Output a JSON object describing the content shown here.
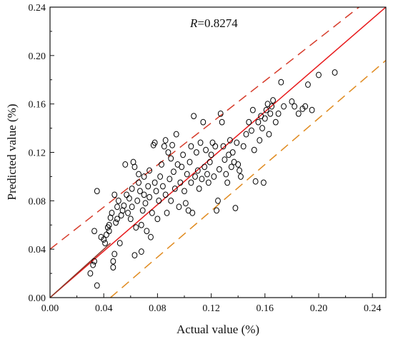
{
  "chart_data": {
    "type": "scatter",
    "title": "",
    "xlabel": "Actual value (%)",
    "ylabel": "Predicted value (%)",
    "xlim": [
      0.0,
      0.25
    ],
    "ylim": [
      0.0,
      0.24
    ],
    "x_ticks": [
      "0.00",
      "0.04",
      "0.08",
      "0.12",
      "0.16",
      "0.20",
      "0.24"
    ],
    "y_ticks": [
      "0.00",
      "0.04",
      "0.08",
      "0.12",
      "0.16",
      "0.20",
      "0.24"
    ],
    "grid": false,
    "annotation": {
      "var": "R",
      "text": "=0.8274"
    },
    "colors": {
      "fit_line": "#e8191b",
      "upper_band": "#d63b2a",
      "lower_band": "#e08a1e",
      "identity_line": "#8a3a2a",
      "markers": "#000000"
    },
    "lines": [
      {
        "role": "fit",
        "style": "solid",
        "x": [
          0.0,
          0.25
        ],
        "y": [
          0.0,
          0.24
        ]
      },
      {
        "role": "identity",
        "style": "solid",
        "x": [
          0.0,
          0.045
        ],
        "y": [
          0.0,
          0.045
        ]
      },
      {
        "role": "upper-bound",
        "style": "dashed",
        "x": [
          0.0,
          0.23
        ],
        "y": [
          0.04,
          0.24
        ]
      },
      {
        "role": "lower-bound",
        "style": "dashed",
        "x": [
          0.045,
          0.25
        ],
        "y": [
          0.0,
          0.196
        ]
      }
    ],
    "points": [
      [
        0.03,
        0.02
      ],
      [
        0.032,
        0.027
      ],
      [
        0.033,
        0.03
      ],
      [
        0.035,
        0.01
      ],
      [
        0.033,
        0.055
      ],
      [
        0.035,
        0.088
      ],
      [
        0.038,
        0.05
      ],
      [
        0.04,
        0.048
      ],
      [
        0.041,
        0.045
      ],
      [
        0.042,
        0.052
      ],
      [
        0.043,
        0.058
      ],
      [
        0.044,
        0.06
      ],
      [
        0.045,
        0.066
      ],
      [
        0.046,
        0.07
      ],
      [
        0.044,
        0.055
      ],
      [
        0.047,
        0.025
      ],
      [
        0.047,
        0.03
      ],
      [
        0.048,
        0.036
      ],
      [
        0.049,
        0.062
      ],
      [
        0.05,
        0.065
      ],
      [
        0.05,
        0.075
      ],
      [
        0.051,
        0.08
      ],
      [
        0.048,
        0.085
      ],
      [
        0.052,
        0.045
      ],
      [
        0.053,
        0.068
      ],
      [
        0.054,
        0.072
      ],
      [
        0.055,
        0.076
      ],
      [
        0.056,
        0.11
      ],
      [
        0.057,
        0.085
      ],
      [
        0.058,
        0.07
      ],
      [
        0.059,
        0.082
      ],
      [
        0.06,
        0.065
      ],
      [
        0.061,
        0.075
      ],
      [
        0.061,
        0.09
      ],
      [
        0.062,
        0.112
      ],
      [
        0.063,
        0.108
      ],
      [
        0.063,
        0.035
      ],
      [
        0.064,
        0.058
      ],
      [
        0.065,
        0.08
      ],
      [
        0.066,
        0.095
      ],
      [
        0.066,
        0.102
      ],
      [
        0.067,
        0.088
      ],
      [
        0.068,
        0.038
      ],
      [
        0.068,
        0.06
      ],
      [
        0.069,
        0.072
      ],
      [
        0.07,
        0.085
      ],
      [
        0.07,
        0.1
      ],
      [
        0.071,
        0.078
      ],
      [
        0.072,
        0.055
      ],
      [
        0.073,
        0.092
      ],
      [
        0.074,
        0.083
      ],
      [
        0.074,
        0.105
      ],
      [
        0.075,
        0.05
      ],
      [
        0.076,
        0.07
      ],
      [
        0.077,
        0.126
      ],
      [
        0.078,
        0.128
      ],
      [
        0.078,
        0.095
      ],
      [
        0.079,
        0.088
      ],
      [
        0.08,
        0.065
      ],
      [
        0.081,
        0.08
      ],
      [
        0.082,
        0.1
      ],
      [
        0.083,
        0.11
      ],
      [
        0.084,
        0.092
      ],
      [
        0.085,
        0.125
      ],
      [
        0.086,
        0.13
      ],
      [
        0.086,
        0.085
      ],
      [
        0.087,
        0.07
      ],
      [
        0.088,
        0.12
      ],
      [
        0.089,
        0.098
      ],
      [
        0.09,
        0.115
      ],
      [
        0.09,
        0.08
      ],
      [
        0.091,
        0.126
      ],
      [
        0.092,
        0.104
      ],
      [
        0.093,
        0.09
      ],
      [
        0.094,
        0.135
      ],
      [
        0.095,
        0.11
      ],
      [
        0.096,
        0.075
      ],
      [
        0.097,
        0.095
      ],
      [
        0.098,
        0.108
      ],
      [
        0.099,
        0.118
      ],
      [
        0.1,
        0.088
      ],
      [
        0.101,
        0.078
      ],
      [
        0.102,
        0.102
      ],
      [
        0.103,
        0.072
      ],
      [
        0.104,
        0.112
      ],
      [
        0.105,
        0.095
      ],
      [
        0.105,
        0.125
      ],
      [
        0.106,
        0.07
      ],
      [
        0.107,
        0.15
      ],
      [
        0.108,
        0.1
      ],
      [
        0.109,
        0.12
      ],
      [
        0.11,
        0.105
      ],
      [
        0.111,
        0.09
      ],
      [
        0.112,
        0.128
      ],
      [
        0.113,
        0.098
      ],
      [
        0.114,
        0.145
      ],
      [
        0.115,
        0.108
      ],
      [
        0.116,
        0.122
      ],
      [
        0.117,
        0.102
      ],
      [
        0.118,
        0.095
      ],
      [
        0.119,
        0.112
      ],
      [
        0.12,
        0.118
      ],
      [
        0.121,
        0.128
      ],
      [
        0.122,
        0.1
      ],
      [
        0.123,
        0.125
      ],
      [
        0.124,
        0.072
      ],
      [
        0.125,
        0.08
      ],
      [
        0.126,
        0.106
      ],
      [
        0.127,
        0.152
      ],
      [
        0.128,
        0.145
      ],
      [
        0.129,
        0.125
      ],
      [
        0.13,
        0.114
      ],
      [
        0.131,
        0.102
      ],
      [
        0.132,
        0.095
      ],
      [
        0.133,
        0.118
      ],
      [
        0.134,
        0.13
      ],
      [
        0.135,
        0.108
      ],
      [
        0.136,
        0.12
      ],
      [
        0.137,
        0.112
      ],
      [
        0.138,
        0.074
      ],
      [
        0.139,
        0.128
      ],
      [
        0.14,
        0.11
      ],
      [
        0.141,
        0.105
      ],
      [
        0.142,
        0.1
      ],
      [
        0.144,
        0.125
      ],
      [
        0.146,
        0.135
      ],
      [
        0.148,
        0.145
      ],
      [
        0.15,
        0.138
      ],
      [
        0.151,
        0.155
      ],
      [
        0.152,
        0.122
      ],
      [
        0.153,
        0.096
      ],
      [
        0.155,
        0.145
      ],
      [
        0.156,
        0.13
      ],
      [
        0.157,
        0.15
      ],
      [
        0.158,
        0.14
      ],
      [
        0.159,
        0.095
      ],
      [
        0.16,
        0.148
      ],
      [
        0.161,
        0.155
      ],
      [
        0.162,
        0.16
      ],
      [
        0.163,
        0.135
      ],
      [
        0.164,
        0.152
      ],
      [
        0.165,
        0.158
      ],
      [
        0.166,
        0.163
      ],
      [
        0.168,
        0.145
      ],
      [
        0.17,
        0.152
      ],
      [
        0.172,
        0.178
      ],
      [
        0.174,
        0.158
      ],
      [
        0.18,
        0.162
      ],
      [
        0.182,
        0.158
      ],
      [
        0.185,
        0.152
      ],
      [
        0.188,
        0.156
      ],
      [
        0.19,
        0.158
      ],
      [
        0.192,
        0.176
      ],
      [
        0.195,
        0.155
      ],
      [
        0.2,
        0.184
      ],
      [
        0.212,
        0.186
      ]
    ]
  }
}
